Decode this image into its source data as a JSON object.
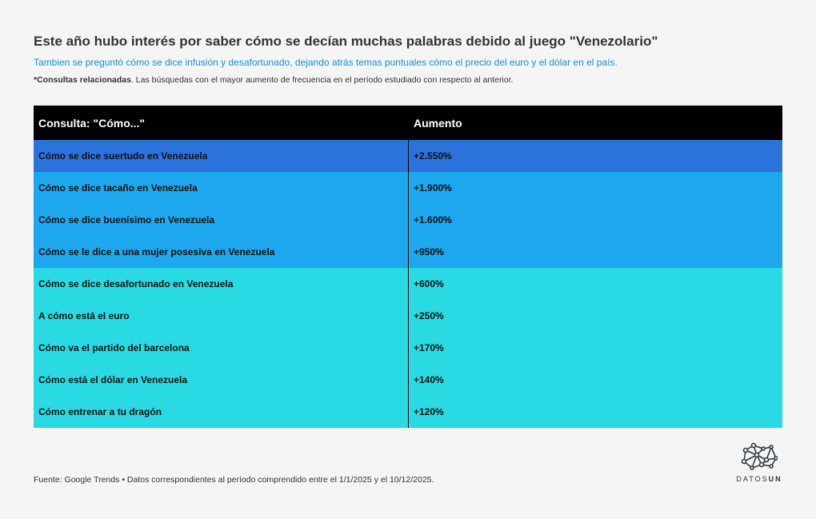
{
  "title": "Este año hubo interés por saber cómo se decían muchas palabras debido al juego \"Venezolario\"",
  "subtitle": "Tambien se preguntó cómo se dice infusión y desafortunado, dejando atrás temas puntuales cómo el precio del euro y el dólar en el país.",
  "note": {
    "bold": "*Consultas relacionadas",
    "text": ". Las búsquedas con el mayor aumento de frecuencia en el período estudiado con respecto al anterior."
  },
  "table": {
    "headers": [
      "Consulta: \"Cómo...\"",
      "Aumento"
    ],
    "rows": [
      {
        "query": "Cómo se dice suertudo en Venezuela",
        "increase": "+2.550%",
        "color": "#2b73da"
      },
      {
        "query": "Cómo se dice tacaño en Venezuela",
        "increase": "+1.900%",
        "color": "#1da7ec"
      },
      {
        "query": "Cómo se dice buenísimo en Venezuela",
        "increase": "+1.600%",
        "color": "#1da7ec"
      },
      {
        "query": "Cómo se le dice a una mujer posesiva en Venezuela",
        "increase": "+950%",
        "color": "#1da7ec"
      },
      {
        "query": "Cómo se dice desafortunado en Venezuela",
        "increase": "+600%",
        "color": "#29d9e3"
      },
      {
        "query": "A cómo está el euro",
        "increase": "+250%",
        "color": "#29d9e3"
      },
      {
        "query": "Cómo va el partido del barcelona",
        "increase": "+170%",
        "color": "#29d9e3"
      },
      {
        "query": "Cómo está el dólar en Venezuela",
        "increase": "+140%",
        "color": "#29d9e3"
      },
      {
        "query": "Cómo entrenar a tu dragón",
        "increase": "+120%",
        "color": "#29d9e3"
      }
    ]
  },
  "source": "Fuente: Google Trends • Datos correspondientes al período comprendido entre el 1/1/2025 y el 10/12/2025.",
  "logo": {
    "text_light": "DATOS",
    "text_bold": "UN"
  }
}
